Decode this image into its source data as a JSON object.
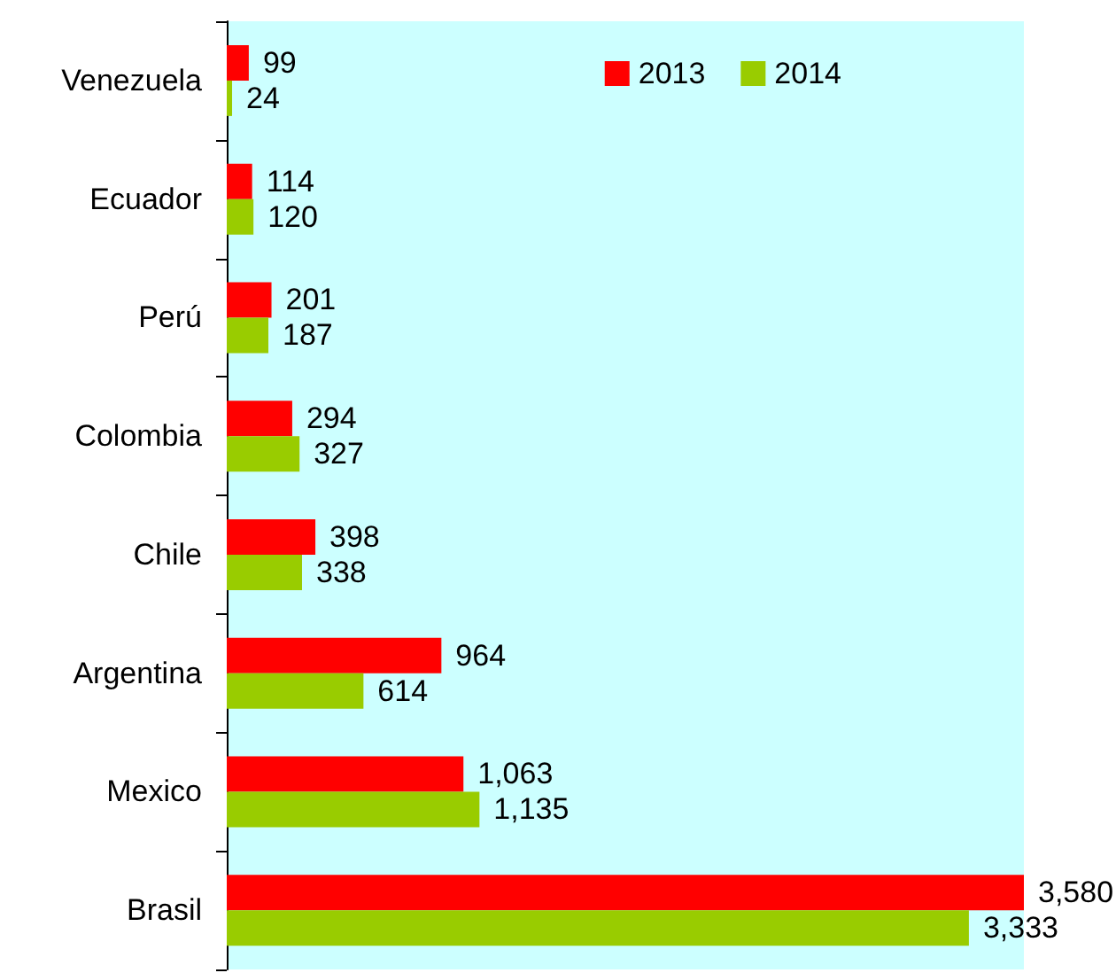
{
  "chart_data": {
    "type": "bar",
    "orientation": "horizontal",
    "categories": [
      "Venezuela",
      "Ecuador",
      "Perú",
      "Colombia",
      "Chile",
      "Argentina",
      "Mexico",
      "Brasil"
    ],
    "series": [
      {
        "name": "2013",
        "color": "#ff0000",
        "values": [
          99,
          114,
          201,
          294,
          398,
          964,
          1063,
          3580
        ],
        "value_labels": [
          "99",
          "114",
          "201",
          "294",
          "398",
          "964",
          "1,063",
          "3,580"
        ]
      },
      {
        "name": "2014",
        "color": "#99cc00",
        "values": [
          24,
          120,
          187,
          327,
          338,
          614,
          1135,
          3333
        ],
        "value_labels": [
          "24",
          "120",
          "187",
          "327",
          "338",
          "614",
          "1,135",
          "3,333"
        ]
      }
    ],
    "legend": "top right"
  }
}
